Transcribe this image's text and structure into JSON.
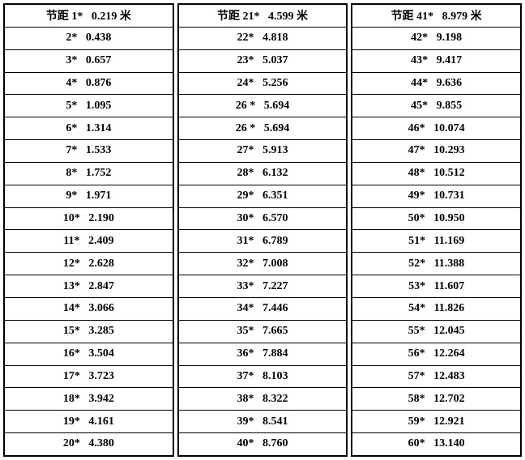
{
  "prefix": "节距",
  "unit": "米",
  "columns": [
    {
      "header_num": "1*",
      "header_val": "0.219",
      "rows": [
        {
          "num": "2*",
          "val": "0.438"
        },
        {
          "num": "3*",
          "val": "0.657"
        },
        {
          "num": "4*",
          "val": "0.876"
        },
        {
          "num": "5*",
          "val": "1.095"
        },
        {
          "num": "6*",
          "val": "1.314"
        },
        {
          "num": "7*",
          "val": "1.533"
        },
        {
          "num": "8*",
          "val": "1.752"
        },
        {
          "num": "9*",
          "val": "1.971"
        },
        {
          "num": "10*",
          "val": "2.190"
        },
        {
          "num": "11*",
          "val": "2.409"
        },
        {
          "num": "12*",
          "val": "2.628"
        },
        {
          "num": "13*",
          "val": "2.847"
        },
        {
          "num": "14*",
          "val": "3.066"
        },
        {
          "num": "15*",
          "val": "3.285"
        },
        {
          "num": "16*",
          "val": "3.504"
        },
        {
          "num": "17*",
          "val": "3.723"
        },
        {
          "num": "18*",
          "val": "3.942"
        },
        {
          "num": "19*",
          "val": "4.161"
        },
        {
          "num": "20*",
          "val": "4.380"
        }
      ]
    },
    {
      "header_num": "21*",
      "header_val": "4.599",
      "rows": [
        {
          "num": "22*",
          "val": "4.818"
        },
        {
          "num": "23*",
          "val": "5.037"
        },
        {
          "num": "24*",
          "val": "5.256"
        },
        {
          "num": "26 *",
          "val": "5.694"
        },
        {
          "num": "26 *",
          "val": "5.694"
        },
        {
          "num": "27*",
          "val": "5.913"
        },
        {
          "num": "28*",
          "val": "6.132"
        },
        {
          "num": "29*",
          "val": "6.351"
        },
        {
          "num": "30*",
          "val": "6.570"
        },
        {
          "num": "31*",
          "val": "6.789"
        },
        {
          "num": "32*",
          "val": "7.008"
        },
        {
          "num": "33*",
          "val": "7.227"
        },
        {
          "num": "34*",
          "val": "7.446"
        },
        {
          "num": "35*",
          "val": "7.665"
        },
        {
          "num": "36*",
          "val": "7.884"
        },
        {
          "num": "37*",
          "val": "8.103"
        },
        {
          "num": "38*",
          "val": "8.322"
        },
        {
          "num": "39*",
          "val": "8.541"
        },
        {
          "num": "40*",
          "val": "8.760"
        }
      ]
    },
    {
      "header_num": "41*",
      "header_val": "8.979",
      "rows": [
        {
          "num": "42*",
          "val": "9.198"
        },
        {
          "num": "43*",
          "val": "9.417"
        },
        {
          "num": "44*",
          "val": "9.636"
        },
        {
          "num": "45*",
          "val": "9.855"
        },
        {
          "num": "46*",
          "val": "10.074"
        },
        {
          "num": "47*",
          "val": "10.293"
        },
        {
          "num": "48*",
          "val": "10.512"
        },
        {
          "num": "49*",
          "val": "10.731"
        },
        {
          "num": "50*",
          "val": "10.950"
        },
        {
          "num": "51*",
          "val": "11.169"
        },
        {
          "num": "52*",
          "val": "11.388"
        },
        {
          "num": "53*",
          "val": "11.607"
        },
        {
          "num": "54*",
          "val": "11.826"
        },
        {
          "num": "55*",
          "val": "12.045"
        },
        {
          "num": "56*",
          "val": "12.264"
        },
        {
          "num": "57*",
          "val": "12.483"
        },
        {
          "num": "58*",
          "val": "12.702"
        },
        {
          "num": "59*",
          "val": "12.921"
        },
        {
          "num": "60*",
          "val": "13.140"
        }
      ]
    }
  ]
}
